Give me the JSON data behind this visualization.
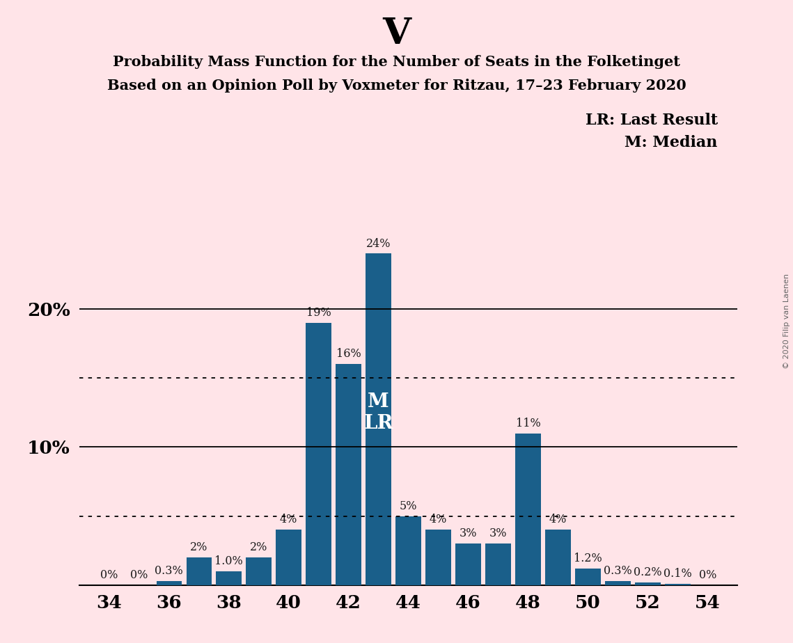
{
  "title_top": "V",
  "title_line1": "Probability Mass Function for the Number of Seats in the Folketinget",
  "title_line2": "Based on an Opinion Poll by Voxmeter for Ritzau, 17–23 February 2020",
  "copyright": "© 2020 Filip van Laenen",
  "legend_lr": "LR: Last Result",
  "legend_m": "M: Median",
  "background_color": "#FFE4E8",
  "bar_color": "#1a5f8a",
  "seats": [
    34,
    35,
    36,
    37,
    38,
    39,
    40,
    41,
    42,
    43,
    44,
    45,
    46,
    47,
    48,
    49,
    50,
    51,
    52,
    53,
    54
  ],
  "values": [
    0.0,
    0.0,
    0.3,
    2.0,
    1.0,
    2.0,
    4.0,
    19.0,
    16.0,
    24.0,
    5.0,
    4.0,
    3.0,
    3.0,
    11.0,
    4.0,
    1.2,
    0.3,
    0.2,
    0.1,
    0.0
  ],
  "labels": [
    "0%",
    "0%",
    "0.3%",
    "2%",
    "1.0%",
    "2%",
    "4%",
    "19%",
    "16%",
    "24%",
    "5%",
    "4%",
    "3%",
    "3%",
    "11%",
    "4%",
    "1.2%",
    "0.3%",
    "0.2%",
    "0.1%",
    "0%"
  ],
  "median_seat": 43,
  "lr_seat": 43,
  "solid_gridlines": [
    10,
    20
  ],
  "dotted_gridlines": [
    5,
    15
  ],
  "xlim": [
    33.0,
    55.0
  ],
  "ylim": [
    0,
    27
  ],
  "xticks": [
    34,
    36,
    38,
    40,
    42,
    44,
    46,
    48,
    50,
    52,
    54
  ],
  "ytick_labels_pos": [
    10,
    20
  ],
  "ytick_labels": [
    "10%",
    "20%"
  ]
}
